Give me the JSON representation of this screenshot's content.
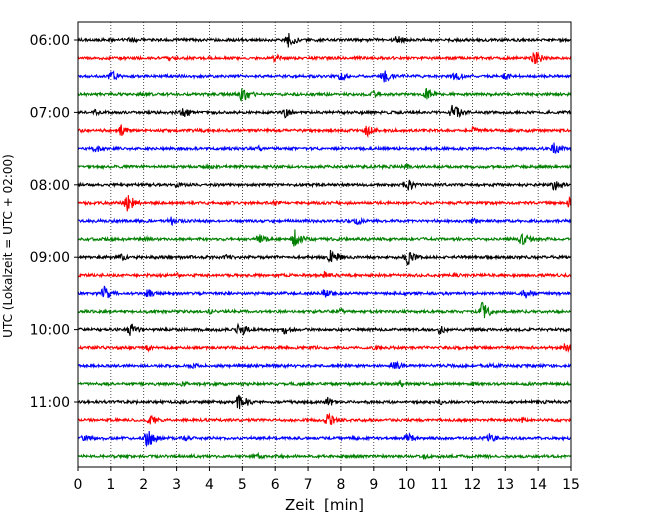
{
  "chart_data": {
    "type": "line",
    "title": "",
    "xlabel": "Zeit  [min]",
    "ylabel": "UTC (Lokalzeit = UTC + 02:00)",
    "xlim": [
      0,
      15
    ],
    "x_ticks": [
      "0",
      "1",
      "2",
      "3",
      "4",
      "5",
      "6",
      "7",
      "8",
      "9",
      "10",
      "11",
      "12",
      "13",
      "14",
      "15"
    ],
    "y_ticks": [
      "06:00",
      "07:00",
      "08:00",
      "09:00",
      "10:00",
      "11:00"
    ],
    "grid_x": true,
    "colors": [
      "#000000",
      "#ff0000",
      "#0000ff",
      "#008000"
    ],
    "series": [
      {
        "start": "06:00",
        "color": "#000000",
        "events": [
          [
            6.4,
            0.7
          ],
          [
            9.7,
            0.5
          ],
          [
            1.6,
            0.35
          ]
        ]
      },
      {
        "start": "06:15",
        "color": "#ff0000",
        "events": [
          [
            13.9,
            0.8
          ],
          [
            6.0,
            0.4
          ],
          [
            2.8,
            0.3
          ]
        ]
      },
      {
        "start": "06:30",
        "color": "#0000ff",
        "events": [
          [
            1.0,
            0.6
          ],
          [
            8.0,
            0.6
          ],
          [
            9.3,
            0.7
          ],
          [
            11.5,
            0.6
          ],
          [
            13.0,
            0.4
          ]
        ]
      },
      {
        "start": "06:45",
        "color": "#008000",
        "events": [
          [
            5.0,
            1.0
          ],
          [
            10.6,
            0.6
          ],
          [
            9.0,
            0.4
          ]
        ]
      },
      {
        "start": "07:00",
        "color": "#000000",
        "events": [
          [
            3.2,
            0.6
          ],
          [
            11.4,
            0.9
          ],
          [
            6.3,
            0.5
          ],
          [
            0.5,
            0.3
          ]
        ]
      },
      {
        "start": "07:15",
        "color": "#ff0000",
        "events": [
          [
            1.3,
            0.6
          ],
          [
            8.8,
            0.6
          ],
          [
            12.0,
            0.4
          ]
        ]
      },
      {
        "start": "07:30",
        "color": "#0000ff",
        "events": [
          [
            14.5,
            0.7
          ],
          [
            0.5,
            0.5
          ],
          [
            5.5,
            0.3
          ]
        ]
      },
      {
        "start": "07:45",
        "color": "#008000",
        "events": [
          [
            4.0,
            0.3
          ],
          [
            10.0,
            0.3
          ]
        ]
      },
      {
        "start": "08:00",
        "color": "#000000",
        "events": [
          [
            10.0,
            0.7
          ],
          [
            14.5,
            0.6
          ],
          [
            3.0,
            0.3
          ]
        ]
      },
      {
        "start": "08:15",
        "color": "#ff0000",
        "events": [
          [
            1.5,
            0.9
          ],
          [
            15.0,
            1.0
          ],
          [
            6.0,
            0.3
          ]
        ]
      },
      {
        "start": "08:30",
        "color": "#0000ff",
        "events": [
          [
            2.8,
            0.5
          ],
          [
            8.5,
            0.4
          ],
          [
            12.0,
            0.3
          ]
        ]
      },
      {
        "start": "08:45",
        "color": "#008000",
        "events": [
          [
            6.6,
            0.9
          ],
          [
            13.5,
            0.8
          ],
          [
            5.5,
            0.5
          ],
          [
            2.0,
            0.3
          ]
        ]
      },
      {
        "start": "09:00",
        "color": "#000000",
        "events": [
          [
            7.7,
            0.8
          ],
          [
            10.0,
            0.9
          ],
          [
            1.3,
            0.4
          ],
          [
            4.5,
            0.3
          ]
        ]
      },
      {
        "start": "09:15",
        "color": "#ff0000",
        "events": [
          [
            7.5,
            0.4
          ],
          [
            11.5,
            0.3
          ],
          [
            3.0,
            0.3
          ]
        ]
      },
      {
        "start": "09:30",
        "color": "#0000ff",
        "events": [
          [
            0.8,
            0.8
          ],
          [
            2.1,
            0.5
          ],
          [
            7.5,
            0.5
          ],
          [
            13.6,
            0.6
          ]
        ]
      },
      {
        "start": "09:45",
        "color": "#008000",
        "events": [
          [
            12.3,
            0.9
          ],
          [
            8.0,
            0.3
          ],
          [
            4.0,
            0.3
          ]
        ]
      },
      {
        "start": "10:00",
        "color": "#000000",
        "events": [
          [
            1.6,
            0.7
          ],
          [
            4.9,
            0.8
          ],
          [
            6.3,
            0.5
          ],
          [
            11.0,
            0.5
          ]
        ]
      },
      {
        "start": "10:15",
        "color": "#ff0000",
        "events": [
          [
            2.1,
            0.4
          ],
          [
            14.8,
            0.5
          ],
          [
            9.0,
            0.3
          ]
        ]
      },
      {
        "start": "10:30",
        "color": "#0000ff",
        "events": [
          [
            9.6,
            0.6
          ],
          [
            12.5,
            0.3
          ],
          [
            3.5,
            0.3
          ]
        ]
      },
      {
        "start": "10:45",
        "color": "#008000",
        "events": [
          [
            3.2,
            0.3
          ],
          [
            9.8,
            0.4
          ],
          [
            12.0,
            0.3
          ]
        ]
      },
      {
        "start": "11:00",
        "color": "#000000",
        "events": [
          [
            4.9,
            1.0
          ],
          [
            7.6,
            0.5
          ],
          [
            11.0,
            0.3
          ]
        ]
      },
      {
        "start": "11:15",
        "color": "#ff0000",
        "events": [
          [
            2.2,
            0.6
          ],
          [
            7.6,
            0.7
          ],
          [
            13.5,
            0.3
          ]
        ]
      },
      {
        "start": "11:30",
        "color": "#0000ff",
        "events": [
          [
            2.1,
            1.0
          ],
          [
            10.0,
            0.6
          ],
          [
            12.5,
            0.6
          ],
          [
            3.2,
            0.3
          ],
          [
            0.2,
            0.5
          ]
        ]
      },
      {
        "start": "11:45",
        "color": "#008000",
        "events": [
          [
            5.5,
            0.3
          ],
          [
            10.5,
            0.3
          ]
        ]
      }
    ]
  }
}
